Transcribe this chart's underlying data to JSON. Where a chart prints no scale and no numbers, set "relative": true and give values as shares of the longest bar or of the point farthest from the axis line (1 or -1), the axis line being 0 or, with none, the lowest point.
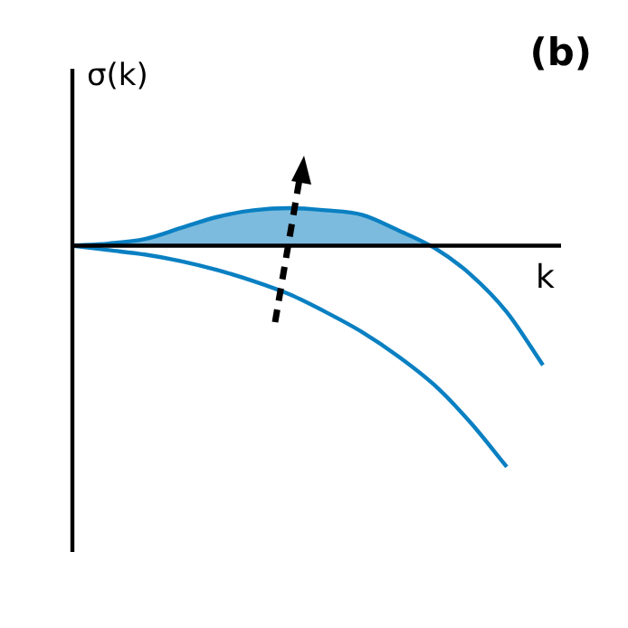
{
  "chart_data": {
    "type": "line",
    "title": "(b)",
    "xlabel": "k",
    "ylabel": "σ(k)",
    "relative": true,
    "marker": "none",
    "line_style": "solid",
    "legend": false,
    "categories": [
      null,
      null,
      null,
      null,
      null,
      null,
      null,
      null,
      null,
      null,
      null,
      null,
      null,
      null
    ],
    "series": [
      {
        "type": "area",
        "color": "#0a80c2",
        "values": [
          0,
          0.01,
          0.03,
          0.08,
          0.13,
          0.16,
          0.17,
          0.16,
          0.14,
          0.07,
          -0.01,
          -0.13,
          -0.3,
          -0.54
        ]
      },
      {
        "type": "line",
        "color": "#0a80c2",
        "values": [
          0,
          -0.02,
          -0.04,
          -0.07,
          -0.11,
          -0.16,
          -0.22,
          -0.3,
          -0.39,
          -0.5,
          -0.63,
          -0.8,
          -1,
          null
        ]
      }
    ]
  }
}
